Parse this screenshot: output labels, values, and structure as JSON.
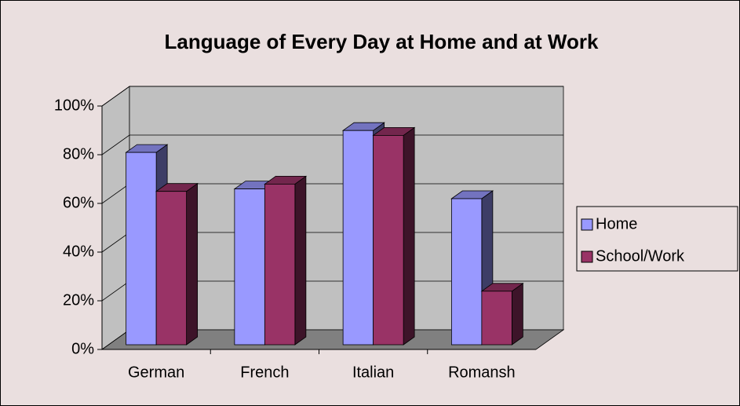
{
  "chart_data": {
    "type": "bar",
    "title": "Language of Every Day at Home and at Work",
    "categories": [
      "German",
      "French",
      "Italian",
      "Romansh"
    ],
    "series": [
      {
        "name": "Home",
        "color": "#9999ff",
        "values": [
          79,
          64,
          88,
          60
        ]
      },
      {
        "name": "School/Work",
        "color": "#993366",
        "values": [
          63,
          66,
          86,
          22
        ]
      }
    ],
    "ylim": [
      0,
      100
    ],
    "yticks": [
      {
        "value": 0,
        "label": "0%"
      },
      {
        "value": 20,
        "label": "20%"
      },
      {
        "value": 40,
        "label": "40%"
      },
      {
        "value": 60,
        "label": "60%"
      },
      {
        "value": 80,
        "label": "80%"
      },
      {
        "value": 100,
        "label": "100%"
      }
    ],
    "grid": true,
    "legend": "right"
  }
}
